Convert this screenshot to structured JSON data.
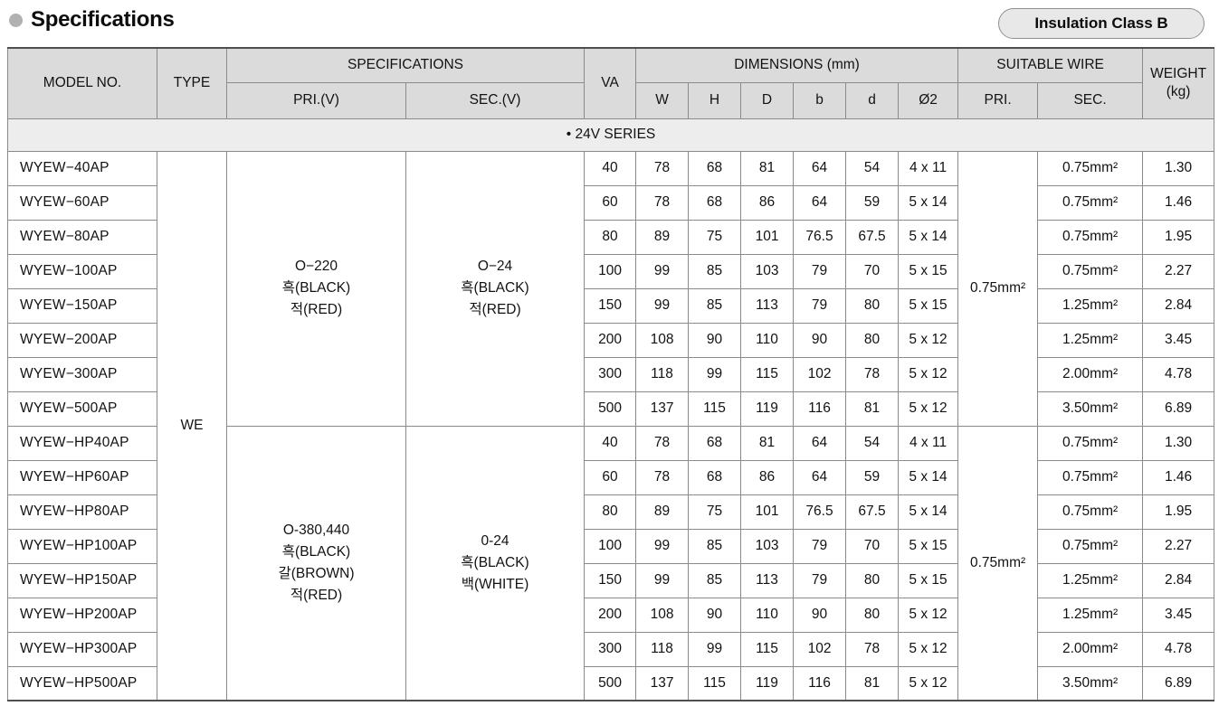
{
  "colors": {
    "header-bg": "#dbdbdb",
    "series-bg": "#ededee",
    "border": "#8a8a8a",
    "frame": "#4f4f4f",
    "pill-bg": "#e8e8e8",
    "pill-border": "#8f8f8f",
    "text": "#121212",
    "bullet": "#b1b1b3"
  },
  "page": {
    "title": "Specifications",
    "badge": "Insulation Class B"
  },
  "table": {
    "headers": {
      "model": "MODEL NO.",
      "type": "TYPE",
      "specifications": "SPECIFICATIONS",
      "pri_v": "PRI.(V)",
      "sec_v": "SEC.(V)",
      "va": "VA",
      "dimensions": "DIMENSIONS (mm)",
      "dims": [
        "W",
        "H",
        "D",
        "b",
        "d",
        "Ø2"
      ],
      "suitable_wire": "SUITABLE WIRE",
      "wire_pri": "PRI.",
      "wire_sec": "SEC.",
      "weight_line1": "WEIGHT",
      "weight_line2": "(kg)"
    },
    "series_label": "• 24V SERIES",
    "type_value": "WE",
    "groups": [
      {
        "pri_spec": [
          "O−220",
          "흑(BLACK)",
          "적(RED)"
        ],
        "sec_spec": [
          "O−24",
          "흑(BLACK)",
          "적(RED)"
        ],
        "wire_pri": "0.75mm²",
        "rows": [
          {
            "model": "WYEW−40AP",
            "va": "40",
            "W": "78",
            "H": "68",
            "D": "81",
            "b": "64",
            "d": "54",
            "phi2": "4 x 11",
            "wire_sec": "0.75mm²",
            "weight": "1.30"
          },
          {
            "model": "WYEW−60AP",
            "va": "60",
            "W": "78",
            "H": "68",
            "D": "86",
            "b": "64",
            "d": "59",
            "phi2": "5 x 14",
            "wire_sec": "0.75mm²",
            "weight": "1.46"
          },
          {
            "model": "WYEW−80AP",
            "va": "80",
            "W": "89",
            "H": "75",
            "D": "101",
            "b": "76.5",
            "d": "67.5",
            "phi2": "5 x 14",
            "wire_sec": "0.75mm²",
            "weight": "1.95"
          },
          {
            "model": "WYEW−100AP",
            "va": "100",
            "W": "99",
            "H": "85",
            "D": "103",
            "b": "79",
            "d": "70",
            "phi2": "5 x 15",
            "wire_sec": "0.75mm²",
            "weight": "2.27"
          },
          {
            "model": "WYEW−150AP",
            "va": "150",
            "W": "99",
            "H": "85",
            "D": "113",
            "b": "79",
            "d": "80",
            "phi2": "5 x 15",
            "wire_sec": "1.25mm²",
            "weight": "2.84"
          },
          {
            "model": "WYEW−200AP",
            "va": "200",
            "W": "108",
            "H": "90",
            "D": "110",
            "b": "90",
            "d": "80",
            "phi2": "5 x 12",
            "wire_sec": "1.25mm²",
            "weight": "3.45"
          },
          {
            "model": "WYEW−300AP",
            "va": "300",
            "W": "118",
            "H": "99",
            "D": "115",
            "b": "102",
            "d": "78",
            "phi2": "5 x 12",
            "wire_sec": "2.00mm²",
            "weight": "4.78"
          },
          {
            "model": "WYEW−500AP",
            "va": "500",
            "W": "137",
            "H": "115",
            "D": "119",
            "b": "116",
            "d": "81",
            "phi2": "5 x 12",
            "wire_sec": "3.50mm²",
            "weight": "6.89"
          }
        ]
      },
      {
        "pri_spec": [
          "O-380,440",
          "흑(BLACK)",
          "갈(BROWN)",
          "적(RED)"
        ],
        "sec_spec": [
          "0-24",
          "흑(BLACK)",
          "백(WHITE)"
        ],
        "wire_pri": "0.75mm²",
        "rows": [
          {
            "model": "WYEW−HP40AP",
            "va": "40",
            "W": "78",
            "H": "68",
            "D": "81",
            "b": "64",
            "d": "54",
            "phi2": "4 x 11",
            "wire_sec": "0.75mm²",
            "weight": "1.30"
          },
          {
            "model": "WYEW−HP60AP",
            "va": "60",
            "W": "78",
            "H": "68",
            "D": "86",
            "b": "64",
            "d": "59",
            "phi2": "5 x 14",
            "wire_sec": "0.75mm²",
            "weight": "1.46"
          },
          {
            "model": "WYEW−HP80AP",
            "va": "80",
            "W": "89",
            "H": "75",
            "D": "101",
            "b": "76.5",
            "d": "67.5",
            "phi2": "5 x 14",
            "wire_sec": "0.75mm²",
            "weight": "1.95"
          },
          {
            "model": "WYEW−HP100AP",
            "va": "100",
            "W": "99",
            "H": "85",
            "D": "103",
            "b": "79",
            "d": "70",
            "phi2": "5 x 15",
            "wire_sec": "0.75mm²",
            "weight": "2.27"
          },
          {
            "model": "WYEW−HP150AP",
            "va": "150",
            "W": "99",
            "H": "85",
            "D": "113",
            "b": "79",
            "d": "80",
            "phi2": "5 x 15",
            "wire_sec": "1.25mm²",
            "weight": "2.84"
          },
          {
            "model": "WYEW−HP200AP",
            "va": "200",
            "W": "108",
            "H": "90",
            "D": "110",
            "b": "90",
            "d": "80",
            "phi2": "5 x 12",
            "wire_sec": "1.25mm²",
            "weight": "3.45"
          },
          {
            "model": "WYEW−HP300AP",
            "va": "300",
            "W": "118",
            "H": "99",
            "D": "115",
            "b": "102",
            "d": "78",
            "phi2": "5 x 12",
            "wire_sec": "2.00mm²",
            "weight": "4.78"
          },
          {
            "model": "WYEW−HP500AP",
            "va": "500",
            "W": "137",
            "H": "115",
            "D": "119",
            "b": "116",
            "d": "81",
            "phi2": "5 x 12",
            "wire_sec": "3.50mm²",
            "weight": "6.89"
          }
        ]
      }
    ]
  }
}
